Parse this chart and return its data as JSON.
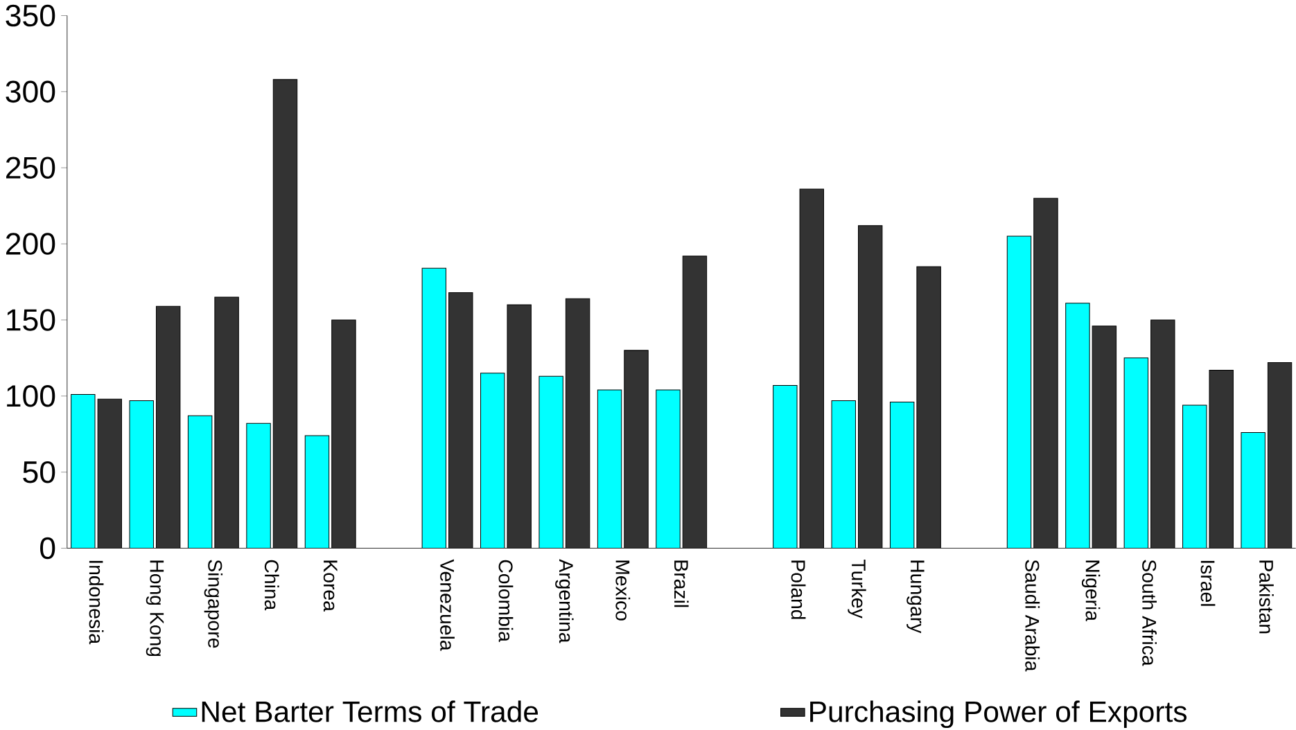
{
  "chart_data": {
    "type": "bar",
    "categories": [
      "Indonesia",
      "Hong Kong",
      "Singapore",
      "China",
      "Korea",
      null,
      "Venezuela",
      "Colombia",
      "Argentina",
      "Mexico",
      "Brazil",
      null,
      "Poland",
      "Turkey",
      "Hungary",
      null,
      "Saudi Arabia",
      "Nigeria",
      "South Africa",
      "Israel",
      "Pakistan"
    ],
    "series": [
      {
        "name": "Net Barter Terms of Trade",
        "color": "#00ffff",
        "values": [
          101,
          97,
          87,
          82,
          74,
          null,
          184,
          115,
          113,
          104,
          104,
          null,
          107,
          97,
          96,
          null,
          205,
          161,
          125,
          94,
          76
        ]
      },
      {
        "name": "Purchasing Power of Exports",
        "color": "#333333",
        "values": [
          98,
          159,
          165,
          308,
          150,
          null,
          168,
          160,
          164,
          130,
          192,
          null,
          236,
          212,
          185,
          null,
          230,
          146,
          150,
          117,
          122
        ]
      }
    ],
    "ylim": [
      0,
      350
    ],
    "yticks": [
      0,
      50,
      100,
      150,
      200,
      250,
      300,
      350
    ],
    "legend": "bottom"
  }
}
